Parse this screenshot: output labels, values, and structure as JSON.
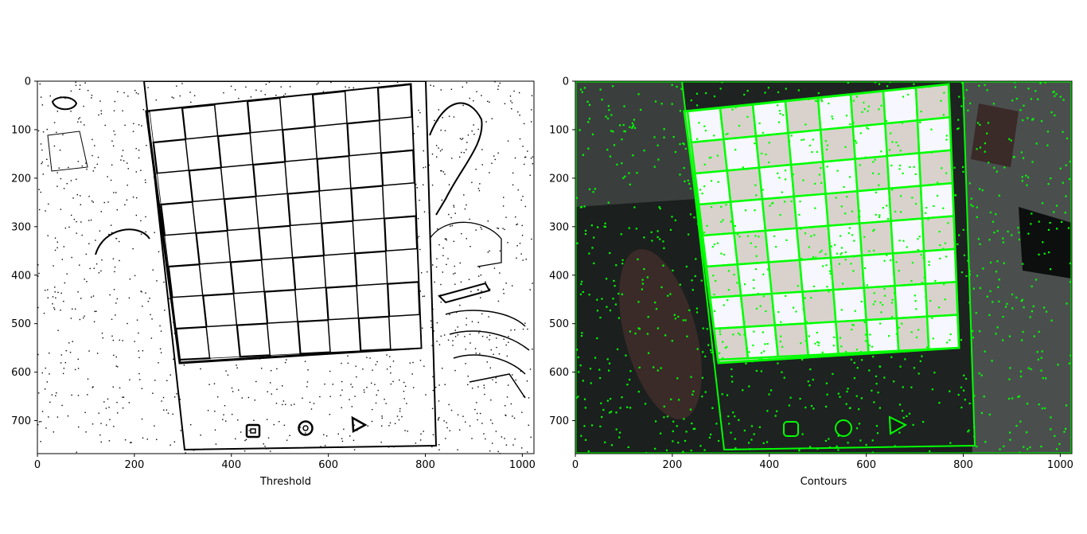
{
  "chart_data": [
    {
      "type": "image",
      "xlabel": "Threshold",
      "xlim": [
        0,
        1024
      ],
      "ylim": [
        768,
        0
      ],
      "x_ticks": [
        0,
        200,
        400,
        600,
        800,
        1000
      ],
      "y_ticks": [
        0,
        100,
        200,
        300,
        400,
        500,
        600,
        700
      ],
      "x_tick_labels": [
        "0",
        "200",
        "400",
        "600",
        "800",
        "1000"
      ],
      "y_tick_labels": [
        "0",
        "100",
        "200",
        "300",
        "400",
        "500",
        "600",
        "700"
      ],
      "colors": {
        "background": "#ffffff",
        "ink": "#000000"
      },
      "content": "binary threshold image of a chessboard"
    },
    {
      "type": "image",
      "xlabel": "Contours",
      "xlim": [
        0,
        1024
      ],
      "ylim": [
        768,
        0
      ],
      "x_ticks": [
        0,
        200,
        400,
        600,
        800,
        1000
      ],
      "y_ticks": [
        0,
        100,
        200,
        300,
        400,
        500,
        600,
        700
      ],
      "x_tick_labels": [
        "0",
        "200",
        "400",
        "600",
        "800",
        "1000"
      ],
      "y_tick_labels": [
        "0",
        "100",
        "200",
        "300",
        "400",
        "500",
        "600",
        "700"
      ],
      "colors": {
        "background": "#1a1d1c",
        "contour": "#00ff00",
        "light_square": "#f4f6ff",
        "dark_square": "#d8d2cc"
      },
      "content": "photo of a chessboard with green contour overlay"
    }
  ]
}
